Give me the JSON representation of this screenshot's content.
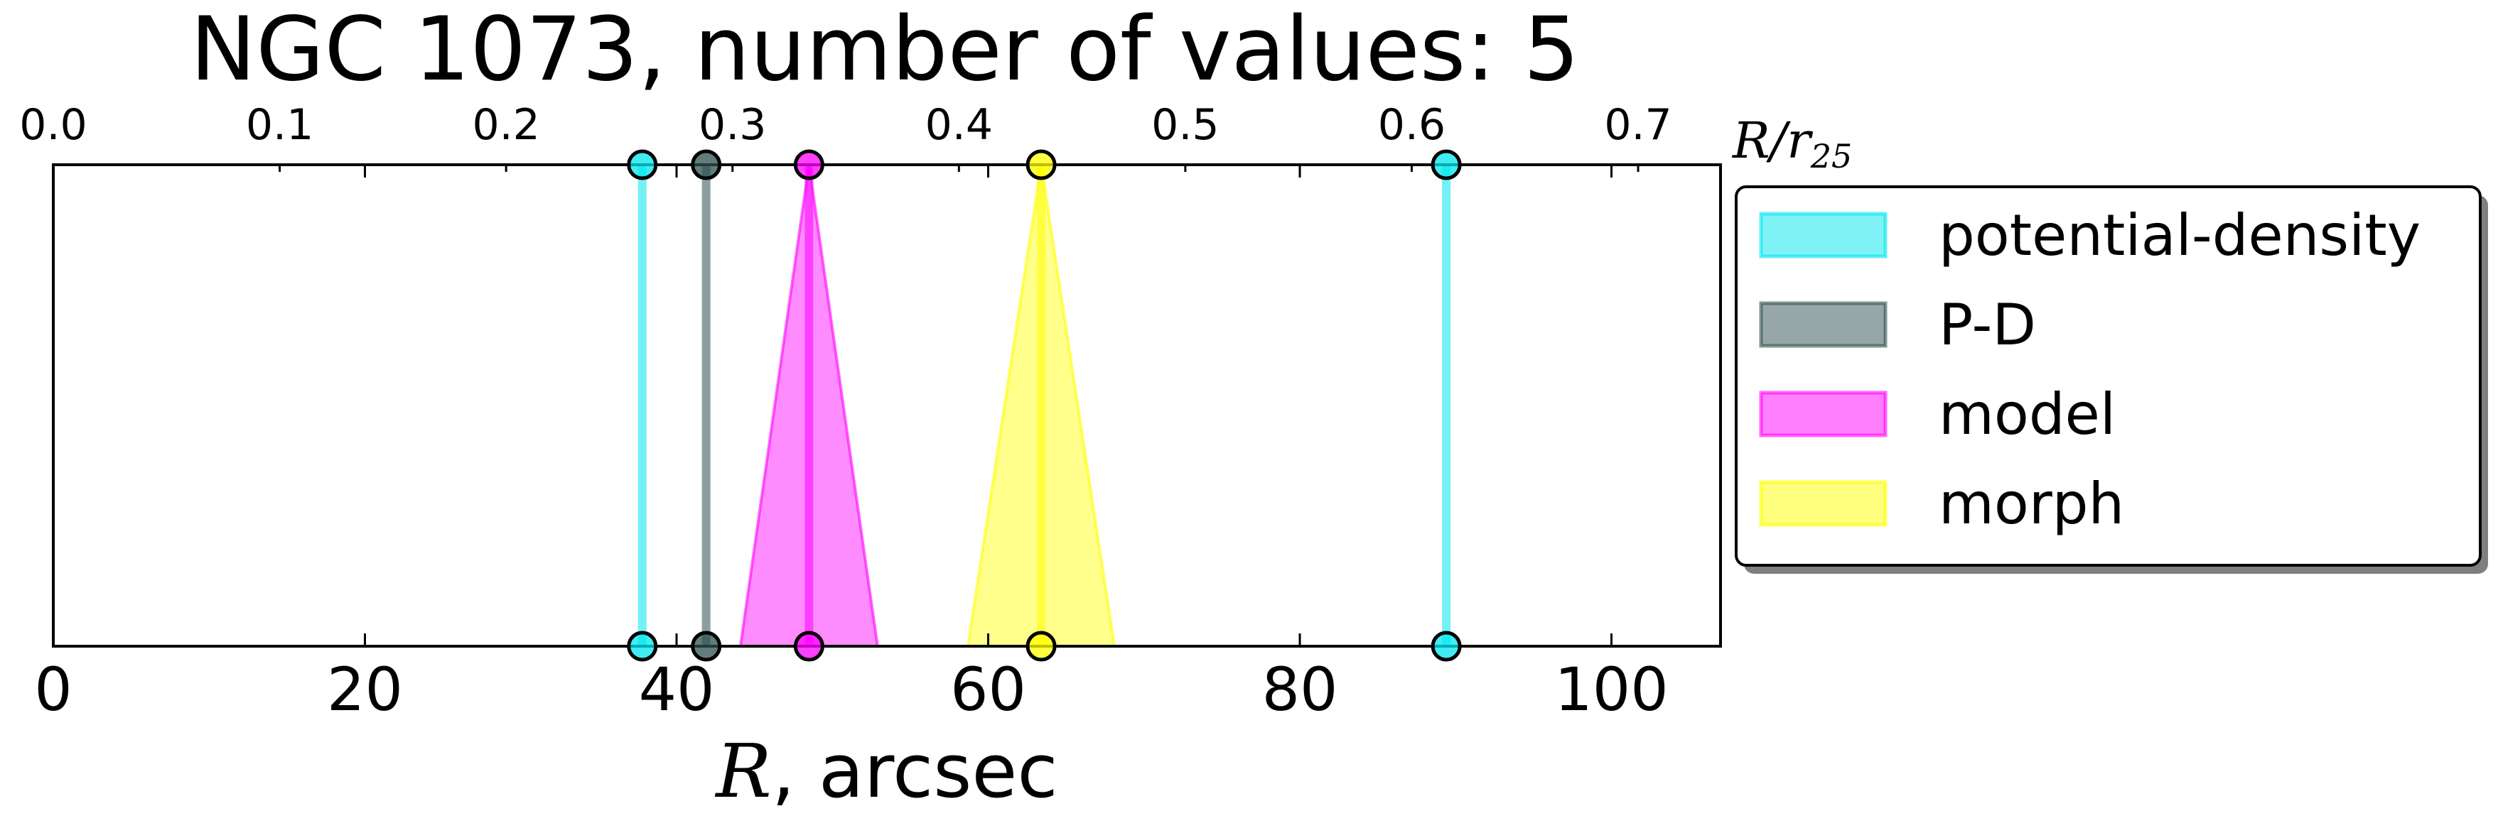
{
  "chart_data": {
    "type": "line",
    "title": "NGC 1073, number of values: 5",
    "xlabel_main": "R",
    "xlabel_suffix": ", arcsec",
    "top_xlabel_main": "R/r",
    "top_xlabel_sub": "25",
    "xlim": [
      0,
      107
    ],
    "xticks": [
      0,
      20,
      40,
      60,
      80,
      100
    ],
    "xtick_labels": [
      "0",
      "20",
      "40",
      "60",
      "80",
      "100"
    ],
    "top_xlim": [
      0,
      0.7364
    ],
    "top_xticks": [
      0.0,
      0.1,
      0.2,
      0.3,
      0.4,
      0.5,
      0.6,
      0.7
    ],
    "top_xtick_labels": [
      "0.0",
      "0.1",
      "0.2",
      "0.3",
      "0.4",
      "0.5",
      "0.6",
      "0.7"
    ],
    "grid": false,
    "legend_position": "right",
    "series": [
      {
        "name": "potential-density",
        "color": "#00e5ee",
        "values": [
          37.8,
          89.4
        ],
        "spread": [
          0,
          0
        ]
      },
      {
        "name": "P-D",
        "color": "#2f4f4f",
        "values": [
          41.9
        ],
        "spread": [
          0
        ]
      },
      {
        "name": "model",
        "color": "#ff00ff",
        "values": [
          48.5
        ],
        "spread": [
          4.4
        ]
      },
      {
        "name": "morph",
        "color": "#ffff00",
        "values": [
          63.4
        ],
        "spread": [
          4.7
        ]
      }
    ]
  }
}
